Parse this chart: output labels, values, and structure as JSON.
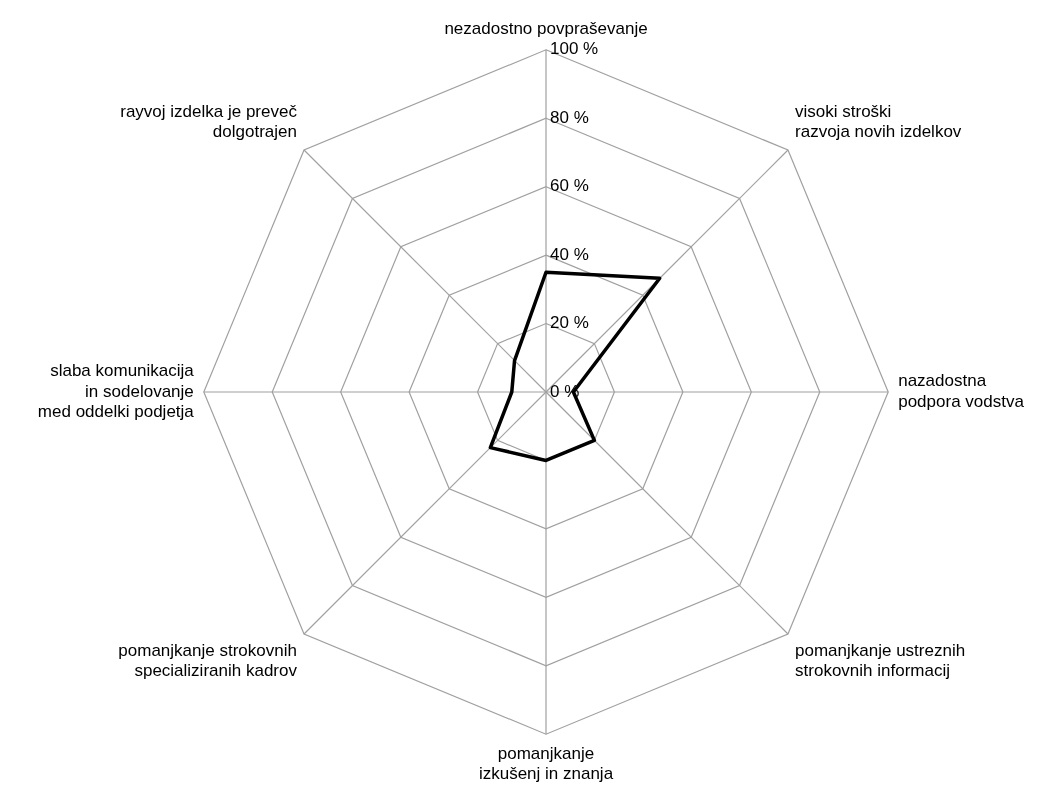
{
  "chart_data": {
    "type": "radar",
    "categories": [
      "nezadostno povpraševanje",
      "visoki stroški\nrazvoja novih izdelkov",
      "nazadostna\npodpora vodstva",
      "pomanjkanje ustreznih\nstrokovnih informacij",
      "pomanjkanje\nizkušenj in znanja",
      "pomanjkanje strokovnih\nspecializiranih kadrov",
      "slaba komunikacija\nin sodelovanje\nmed oddelki podjetja",
      "rayvoj izdelka je preveč\ndolgotrajen"
    ],
    "series": [
      {
        "color": "#000000",
        "values": [
          35,
          47,
          8,
          20,
          20,
          23,
          10,
          13
        ]
      }
    ],
    "ylim": [
      0,
      100
    ],
    "yticks": [
      {
        "value": 0,
        "label": "0 %"
      },
      {
        "value": 20,
        "label": "20 %"
      },
      {
        "value": 40,
        "label": "40 %"
      },
      {
        "value": 60,
        "label": "60 %"
      },
      {
        "value": 80,
        "label": "80 %"
      },
      {
        "value": 100,
        "label": "100 %"
      }
    ],
    "grid": true,
    "legend": false,
    "marker": "none"
  }
}
